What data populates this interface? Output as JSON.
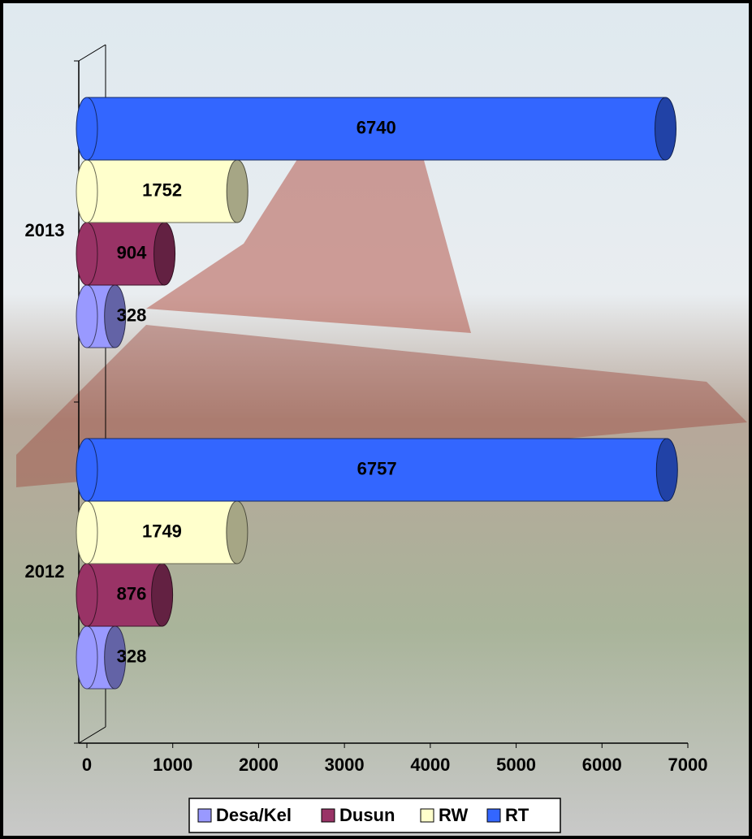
{
  "chart_data": {
    "type": "bar",
    "orientation": "horizontal",
    "categories": [
      "2012",
      "2013"
    ],
    "series": [
      {
        "name": "Desa/Kel",
        "color": "#9999ff",
        "values": [
          328,
          328
        ]
      },
      {
        "name": "Dusun",
        "color": "#993366",
        "values": [
          876,
          904
        ]
      },
      {
        "name": "RW",
        "color": "#ffffcc",
        "values": [
          1749,
          1752
        ]
      },
      {
        "name": "RT",
        "color": "#3366ff",
        "values": [
          6757,
          6740
        ]
      }
    ],
    "xlim": [
      0,
      7000
    ],
    "xticks": [
      0,
      1000,
      2000,
      3000,
      4000,
      5000,
      6000,
      7000
    ],
    "legend": "bottom"
  }
}
